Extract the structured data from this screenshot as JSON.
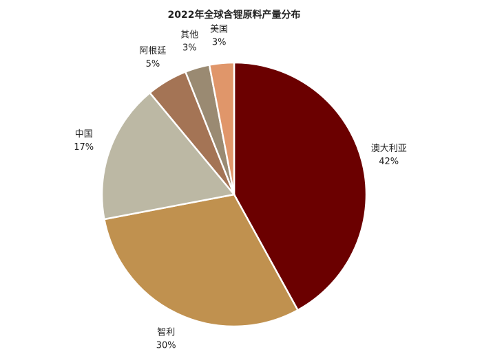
{
  "chart_data": {
    "type": "pie",
    "title": "2022年全球含锂原料产量分布",
    "categories": [
      "澳大利亚",
      "智利",
      "中国",
      "阿根廷",
      "其他",
      "美国"
    ],
    "values": [
      42,
      30,
      17,
      5,
      3,
      3
    ],
    "value_labels": [
      "42%",
      "30%",
      "17%",
      "5%",
      "3%",
      "3%"
    ],
    "colors": [
      "#6b0000",
      "#c0914f",
      "#bcb8a4",
      "#a47455",
      "#9a8a72",
      "#e0966a"
    ]
  }
}
